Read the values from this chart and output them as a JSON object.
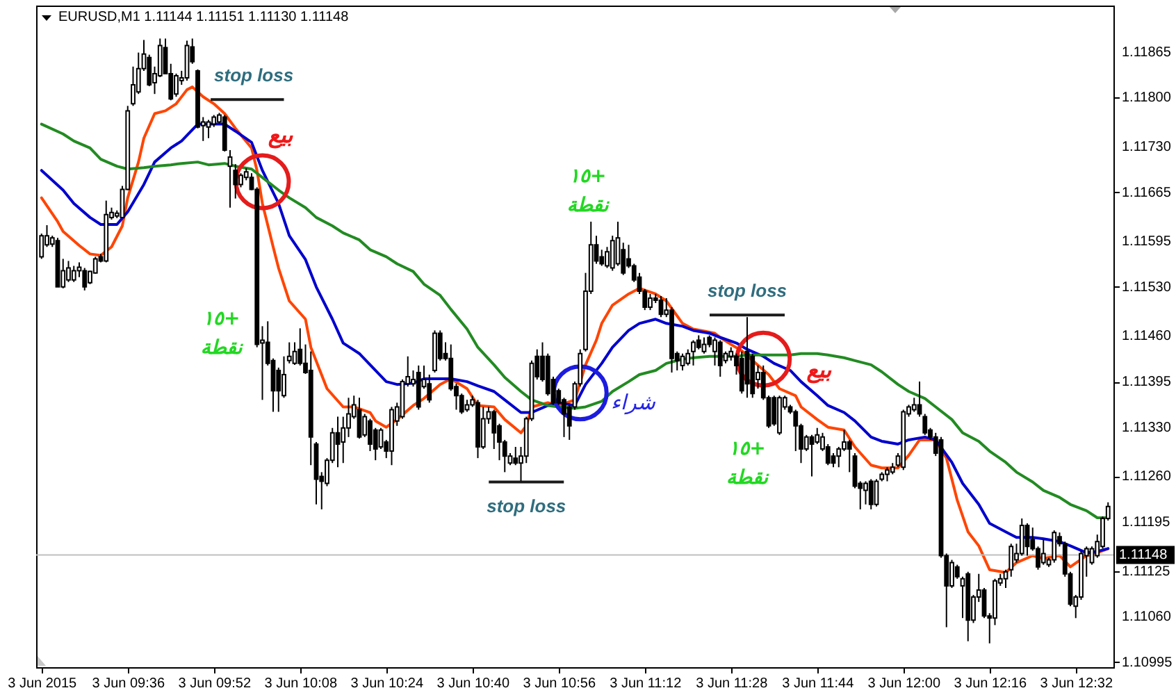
{
  "chart_data": {
    "type": "candlestick",
    "title": "EURUSD,M1 1.11144 1.11151 1.11130 1.11148",
    "color": "#000000",
    "x": [
      "2015-06-03T09:20",
      "2015-06-03T09:21",
      "2015-06-03T09:22",
      "2015-06-03T09:23",
      "2015-06-03T09:24",
      "2015-06-03T09:25",
      "2015-06-03T09:26",
      "2015-06-03T09:27",
      "2015-06-03T09:28",
      "2015-06-03T09:29",
      "2015-06-03T09:30",
      "2015-06-03T09:31",
      "2015-06-03T09:32",
      "2015-06-03T09:33",
      "2015-06-03T09:34",
      "2015-06-03T09:35",
      "2015-06-03T09:36",
      "2015-06-03T09:37",
      "2015-06-03T09:38",
      "2015-06-03T09:39",
      "2015-06-03T09:40",
      "2015-06-03T09:41",
      "2015-06-03T09:42",
      "2015-06-03T09:43",
      "2015-06-03T09:44",
      "2015-06-03T09:45",
      "2015-06-03T09:46",
      "2015-06-03T09:47",
      "2015-06-03T09:48",
      "2015-06-03T09:49",
      "2015-06-03T09:50",
      "2015-06-03T09:51",
      "2015-06-03T09:52",
      "2015-06-03T09:53",
      "2015-06-03T09:54",
      "2015-06-03T09:55",
      "2015-06-03T09:56",
      "2015-06-03T09:57",
      "2015-06-03T09:58",
      "2015-06-03T09:59",
      "2015-06-03T10:00",
      "2015-06-03T10:01",
      "2015-06-03T10:02",
      "2015-06-03T10:03",
      "2015-06-03T10:04",
      "2015-06-03T10:05",
      "2015-06-03T10:06",
      "2015-06-03T10:07",
      "2015-06-03T10:08",
      "2015-06-03T10:09",
      "2015-06-03T10:10",
      "2015-06-03T10:11",
      "2015-06-03T10:12",
      "2015-06-03T10:13",
      "2015-06-03T10:14",
      "2015-06-03T10:15",
      "2015-06-03T10:16",
      "2015-06-03T10:17",
      "2015-06-03T10:18",
      "2015-06-03T10:19",
      "2015-06-03T10:20",
      "2015-06-03T10:21",
      "2015-06-03T10:22",
      "2015-06-03T10:23",
      "2015-06-03T10:24",
      "2015-06-03T10:25",
      "2015-06-03T10:26",
      "2015-06-03T10:27",
      "2015-06-03T10:28",
      "2015-06-03T10:29",
      "2015-06-03T10:30",
      "2015-06-03T10:31",
      "2015-06-03T10:32",
      "2015-06-03T10:33",
      "2015-06-03T10:34",
      "2015-06-03T10:35",
      "2015-06-03T10:36",
      "2015-06-03T10:37",
      "2015-06-03T10:38",
      "2015-06-03T10:39",
      "2015-06-03T10:40",
      "2015-06-03T10:41",
      "2015-06-03T10:42",
      "2015-06-03T10:43",
      "2015-06-03T10:44",
      "2015-06-03T10:45",
      "2015-06-03T10:46",
      "2015-06-03T10:47",
      "2015-06-03T10:48",
      "2015-06-03T10:49",
      "2015-06-03T10:50",
      "2015-06-03T10:51",
      "2015-06-03T10:52",
      "2015-06-03T10:53",
      "2015-06-03T10:54",
      "2015-06-03T10:55",
      "2015-06-03T10:56",
      "2015-06-03T10:57",
      "2015-06-03T10:58",
      "2015-06-03T10:59",
      "2015-06-03T11:00",
      "2015-06-03T11:01",
      "2015-06-03T11:02",
      "2015-06-03T11:03",
      "2015-06-03T11:04",
      "2015-06-03T11:05",
      "2015-06-03T11:06",
      "2015-06-03T11:07",
      "2015-06-03T11:08",
      "2015-06-03T11:09",
      "2015-06-03T11:10",
      "2015-06-03T11:11",
      "2015-06-03T11:12",
      "2015-06-03T11:13",
      "2015-06-03T11:14",
      "2015-06-03T11:15",
      "2015-06-03T11:16",
      "2015-06-03T11:17",
      "2015-06-03T11:18",
      "2015-06-03T11:19",
      "2015-06-03T11:20",
      "2015-06-03T11:21",
      "2015-06-03T11:22",
      "2015-06-03T11:23",
      "2015-06-03T11:24",
      "2015-06-03T11:25",
      "2015-06-03T11:26",
      "2015-06-03T11:27",
      "2015-06-03T11:28",
      "2015-06-03T11:29",
      "2015-06-03T11:30",
      "2015-06-03T11:31",
      "2015-06-03T11:32",
      "2015-06-03T11:33",
      "2015-06-03T11:34",
      "2015-06-03T11:35",
      "2015-06-03T11:36",
      "2015-06-03T11:37",
      "2015-06-03T11:38",
      "2015-06-03T11:39",
      "2015-06-03T11:40",
      "2015-06-03T11:41",
      "2015-06-03T11:42",
      "2015-06-03T11:43",
      "2015-06-03T11:44",
      "2015-06-03T11:45",
      "2015-06-03T11:46",
      "2015-06-03T11:47",
      "2015-06-03T11:48",
      "2015-06-03T11:49",
      "2015-06-03T11:50",
      "2015-06-03T11:51",
      "2015-06-03T11:52",
      "2015-06-03T11:53",
      "2015-06-03T11:54",
      "2015-06-03T11:55",
      "2015-06-03T11:56",
      "2015-06-03T11:57",
      "2015-06-03T11:58",
      "2015-06-03T11:59",
      "2015-06-03T12:00",
      "2015-06-03T12:01",
      "2015-06-03T12:02",
      "2015-06-03T12:03",
      "2015-06-03T12:04",
      "2015-06-03T12:05",
      "2015-06-03T12:06",
      "2015-06-03T12:07",
      "2015-06-03T12:08",
      "2015-06-03T12:09",
      "2015-06-03T12:10",
      "2015-06-03T12:11",
      "2015-06-03T12:12",
      "2015-06-03T12:13",
      "2015-06-03T12:14",
      "2015-06-03T12:15",
      "2015-06-03T12:16",
      "2015-06-03T12:17",
      "2015-06-03T12:18",
      "2015-06-03T12:19",
      "2015-06-03T12:20",
      "2015-06-03T12:21",
      "2015-06-03T12:22",
      "2015-06-03T12:23",
      "2015-06-03T12:24",
      "2015-06-03T12:25",
      "2015-06-03T12:26",
      "2015-06-03T12:27",
      "2015-06-03T12:28",
      "2015-06-03T12:29",
      "2015-06-03T12:30",
      "2015-06-03T12:31",
      "2015-06-03T12:32",
      "2015-06-03T12:33",
      "2015-06-03T12:34",
      "2015-06-03T12:35",
      "2015-06-03T12:36",
      "2015-06-03T12:37",
      "2015-06-03T12:38"
    ],
    "ohlc": [
      [
        1.11573,
        1.11606,
        1.1157,
        1.11603
      ],
      [
        1.1159,
        1.11618,
        1.11587,
        1.11603
      ],
      [
        1.11591,
        1.11603,
        1.11587,
        1.116
      ],
      [
        1.11596,
        1.116,
        1.1153,
        1.1153
      ],
      [
        1.1153,
        1.1157,
        1.11528,
        1.11553
      ],
      [
        1.1154,
        1.11567,
        1.11537,
        1.11557
      ],
      [
        1.1154,
        1.1156,
        1.11537,
        1.11553
      ],
      [
        1.11553,
        1.11565,
        1.11544,
        1.11558
      ],
      [
        1.11553,
        1.11557,
        1.11525,
        1.1153
      ],
      [
        1.11536,
        1.11553,
        1.11534,
        1.11552
      ],
      [
        1.1155,
        1.11573,
        1.11549,
        1.1157
      ],
      [
        1.11573,
        1.11577,
        1.11565,
        1.11567
      ],
      [
        1.11567,
        1.11653,
        1.11565,
        1.11633
      ],
      [
        1.11629,
        1.11643,
        1.11626,
        1.11636
      ],
      [
        1.11631,
        1.11639,
        1.11628,
        1.11635
      ],
      [
        1.11629,
        1.11674,
        1.11628,
        1.11669
      ],
      [
        1.11669,
        1.11788,
        1.11668,
        1.11781
      ],
      [
        1.11791,
        1.11844,
        1.11788,
        1.11818
      ],
      [
        1.11808,
        1.11864,
        1.11805,
        1.11841
      ],
      [
        1.11841,
        1.11882,
        1.11838,
        1.11862
      ],
      [
        1.11857,
        1.11861,
        1.11816,
        1.11818
      ],
      [
        1.11821,
        1.11844,
        1.11805,
        1.11834
      ],
      [
        1.11831,
        1.11884,
        1.11829,
        1.11874
      ],
      [
        1.11871,
        1.11884,
        1.11833,
        1.11834
      ],
      [
        1.11834,
        1.11848,
        1.11796,
        1.11798
      ],
      [
        1.11805,
        1.11834,
        1.11801,
        1.11831
      ],
      [
        1.11824,
        1.11838,
        1.11818,
        1.11828
      ],
      [
        1.11828,
        1.11881,
        1.11824,
        1.11874
      ],
      [
        1.11872,
        1.11884,
        1.11848,
        1.11851
      ],
      [
        1.11838,
        1.1184,
        1.11756,
        1.11758
      ],
      [
        1.1176,
        1.11772,
        1.11738,
        1.11765
      ],
      [
        1.11758,
        1.11768,
        1.11742,
        1.11765
      ],
      [
        1.11762,
        1.11775,
        1.11758,
        1.11772
      ],
      [
        1.11765,
        1.11778,
        1.11763,
        1.11775
      ],
      [
        1.11772,
        1.11775,
        1.11723,
        1.11725
      ],
      [
        1.11702,
        1.11725,
        1.11643,
        1.11715
      ],
      [
        1.11696,
        1.11705,
        1.11656,
        1.11676
      ],
      [
        1.11676,
        1.11692,
        1.11672,
        1.11689
      ],
      [
        1.11686,
        1.11699,
        1.11682,
        1.11694
      ],
      [
        1.11686,
        1.11692,
        1.11668,
        1.11669
      ],
      [
        1.11669,
        1.11672,
        1.11444,
        1.11448
      ],
      [
        1.1145,
        1.11474,
        1.11369,
        1.11454
      ],
      [
        1.11451,
        1.11481,
        1.11418,
        1.11421
      ],
      [
        1.11425,
        1.11428,
        1.11352,
        1.11382
      ],
      [
        1.11411,
        1.11415,
        1.11352,
        1.11382
      ],
      [
        1.11375,
        1.11431,
        1.11372,
        1.11405
      ],
      [
        1.11425,
        1.11451,
        1.11421,
        1.11431
      ],
      [
        1.11421,
        1.11451,
        1.11419,
        1.11438
      ],
      [
        1.11441,
        1.11471,
        1.11418,
        1.11421
      ],
      [
        1.11421,
        1.11448,
        1.11406,
        1.11408
      ],
      [
        1.11411,
        1.11438,
        1.11276,
        1.11316
      ],
      [
        1.11306,
        1.11309,
        1.1122,
        1.11256
      ],
      [
        1.1126,
        1.11266,
        1.11213,
        1.11253
      ],
      [
        1.1125,
        1.11286,
        1.11246,
        1.11283
      ],
      [
        1.11283,
        1.11329,
        1.11279,
        1.11322
      ],
      [
        1.11322,
        1.11345,
        1.11273,
        1.11306
      ],
      [
        1.11309,
        1.11345,
        1.11279,
        1.11329
      ],
      [
        1.11329,
        1.11372,
        1.11316,
        1.11349
      ],
      [
        1.11345,
        1.11375,
        1.11342,
        1.11362
      ],
      [
        1.11355,
        1.11372,
        1.11314,
        1.11316
      ],
      [
        1.11319,
        1.11349,
        1.11316,
        1.11345
      ],
      [
        1.11339,
        1.11342,
        1.11296,
        1.11306
      ],
      [
        1.11326,
        1.11329,
        1.11283,
        1.11299
      ],
      [
        1.11302,
        1.11329,
        1.11299,
        1.11326
      ],
      [
        1.11309,
        1.11312,
        1.11286,
        1.11296
      ],
      [
        1.11296,
        1.11359,
        1.11276,
        1.11355
      ],
      [
        1.11339,
        1.11365,
        1.11332,
        1.11359
      ],
      [
        1.11345,
        1.11398,
        1.11342,
        1.11395
      ],
      [
        1.11392,
        1.11431,
        1.11388,
        1.11402
      ],
      [
        1.11392,
        1.11411,
        1.11388,
        1.11398
      ],
      [
        1.11408,
        1.11418,
        1.11355,
        1.11359
      ],
      [
        1.11388,
        1.11418,
        1.11385,
        1.11398
      ],
      [
        1.11392,
        1.11405,
        1.11365,
        1.11369
      ],
      [
        1.11411,
        1.11468,
        1.11408,
        1.11464
      ],
      [
        1.11464,
        1.11468,
        1.11425,
        1.11428
      ],
      [
        1.11435,
        1.11451,
        1.11425,
        1.11428
      ],
      [
        1.11428,
        1.11448,
        1.11382,
        1.11385
      ],
      [
        1.11388,
        1.11392,
        1.11355,
        1.11375
      ],
      [
        1.11375,
        1.11378,
        1.11349,
        1.11352
      ],
      [
        1.11355,
        1.11369,
        1.11352,
        1.11362
      ],
      [
        1.11362,
        1.11375,
        1.11359,
        1.11369
      ],
      [
        1.11365,
        1.11369,
        1.11286,
        1.11302
      ],
      [
        1.11302,
        1.11359,
        1.11299,
        1.11342
      ],
      [
        1.11342,
        1.11359,
        1.11335,
        1.11352
      ],
      [
        1.11352,
        1.11355,
        1.11299,
        1.11322
      ],
      [
        1.11332,
        1.11335,
        1.11283,
        1.11309
      ],
      [
        1.11309,
        1.11312,
        1.11266,
        1.11289
      ],
      [
        1.11279,
        1.11293,
        1.11276,
        1.11289
      ],
      [
        1.11286,
        1.11302,
        1.11276,
        1.11279
      ],
      [
        1.11279,
        1.11302,
        1.11253,
        1.11289
      ],
      [
        1.11289,
        1.11345,
        1.11279,
        1.11342
      ],
      [
        1.11342,
        1.11425,
        1.11339,
        1.11421
      ],
      [
        1.11431,
        1.11441,
        1.11398,
        1.11402
      ],
      [
        1.11431,
        1.11451,
        1.11395,
        1.11398
      ],
      [
        1.11431,
        1.11435,
        1.11375,
        1.11378
      ],
      [
        1.11398,
        1.11402,
        1.11362,
        1.11365
      ],
      [
        1.11382,
        1.11385,
        1.11362,
        1.11365
      ],
      [
        1.11369,
        1.11372,
        1.11316,
        1.11349
      ],
      [
        1.11359,
        1.11362,
        1.11312,
        1.11332
      ],
      [
        1.11359,
        1.11395,
        1.11355,
        1.11392
      ],
      [
        1.11392,
        1.11441,
        1.11388,
        1.11435
      ],
      [
        1.11441,
        1.1155,
        1.11438,
        1.11524
      ],
      [
        1.11524,
        1.11623,
        1.1152,
        1.1159
      ],
      [
        1.1159,
        1.11603,
        1.11563,
        1.11567
      ],
      [
        1.11573,
        1.11583,
        1.1156,
        1.11563
      ],
      [
        1.1156,
        1.11587,
        1.11557,
        1.1158
      ],
      [
        1.11557,
        1.11603,
        1.11553,
        1.11596
      ],
      [
        1.11563,
        1.11623,
        1.1156,
        1.116
      ],
      [
        1.11583,
        1.11593,
        1.11547,
        1.1155
      ],
      [
        1.1157,
        1.1159,
        1.11557,
        1.1156
      ],
      [
        1.1156,
        1.11563,
        1.11537,
        1.1154
      ],
      [
        1.11544,
        1.1155,
        1.1152,
        1.11524
      ],
      [
        1.11524,
        1.11527,
        1.11497,
        1.11501
      ],
      [
        1.11501,
        1.1152,
        1.11497,
        1.11514
      ],
      [
        1.11514,
        1.1152,
        1.11507,
        1.11511
      ],
      [
        1.11511,
        1.11517,
        1.11487,
        1.11491
      ],
      [
        1.11491,
        1.11514,
        1.11487,
        1.11497
      ],
      [
        1.11497,
        1.11501,
        1.11408,
        1.11428
      ],
      [
        1.11435,
        1.11438,
        1.11411,
        1.11425
      ],
      [
        1.11418,
        1.11435,
        1.11411,
        1.11431
      ],
      [
        1.11421,
        1.11441,
        1.11418,
        1.11435
      ],
      [
        1.11438,
        1.11454,
        1.11418,
        1.11451
      ],
      [
        1.11454,
        1.11461,
        1.11441,
        1.11444
      ],
      [
        1.11438,
        1.11458,
        1.11435,
        1.11448
      ],
      [
        1.11458,
        1.11461,
        1.11444,
        1.11448
      ],
      [
        1.11438,
        1.11458,
        1.11418,
        1.11454
      ],
      [
        1.11451,
        1.11454,
        1.11402,
        1.11418
      ],
      [
        1.11425,
        1.11438,
        1.11421,
        1.11435
      ],
      [
        1.11431,
        1.11444,
        1.11425,
        1.11438
      ],
      [
        1.11431,
        1.11435,
        1.11405,
        1.11418
      ],
      [
        1.11428,
        1.11438,
        1.11378,
        1.11382
      ],
      [
        1.11438,
        1.11487,
        1.11372,
        1.11392
      ],
      [
        1.11431,
        1.11435,
        1.11372,
        1.11378
      ],
      [
        1.11398,
        1.11418,
        1.11385,
        1.11408
      ],
      [
        1.11408,
        1.11418,
        1.11369,
        1.11372
      ],
      [
        1.11372,
        1.11375,
        1.11329,
        1.11332
      ],
      [
        1.11372,
        1.11375,
        1.11332,
        1.11335
      ],
      [
        1.11322,
        1.11375,
        1.11319,
        1.11372
      ],
      [
        1.11359,
        1.11375,
        1.11355,
        1.11372
      ],
      [
        1.11359,
        1.11362,
        1.11349,
        1.11352
      ],
      [
        1.11352,
        1.11355,
        1.11296,
        1.11332
      ],
      [
        1.11332,
        1.11335,
        1.11279,
        1.11299
      ],
      [
        1.11299,
        1.11319,
        1.11296,
        1.11316
      ],
      [
        1.11316,
        1.11319,
        1.1126,
        1.11306
      ],
      [
        1.11309,
        1.11329,
        1.11306,
        1.11319
      ],
      [
        1.11299,
        1.11322,
        1.11296,
        1.11316
      ],
      [
        1.11302,
        1.11306,
        1.11276,
        1.11279
      ],
      [
        1.11289,
        1.11293,
        1.11273,
        1.11279
      ],
      [
        1.11289,
        1.11302,
        1.11273,
        1.11299
      ],
      [
        1.11299,
        1.11326,
        1.11296,
        1.11309
      ],
      [
        1.11309,
        1.11312,
        1.11266,
        1.11299
      ],
      [
        1.11289,
        1.11293,
        1.11243,
        1.11246
      ],
      [
        1.1125,
        1.11253,
        1.11213,
        1.11243
      ],
      [
        1.1124,
        1.11253,
        1.1122,
        1.1125
      ],
      [
        1.11253,
        1.11256,
        1.11213,
        1.1122
      ],
      [
        1.1122,
        1.11256,
        1.11217,
        1.11253
      ],
      [
        1.11256,
        1.11266,
        1.11253,
        1.11263
      ],
      [
        1.11263,
        1.11273,
        1.11253,
        1.11269
      ],
      [
        1.11266,
        1.11279,
        1.11263,
        1.11273
      ],
      [
        1.11276,
        1.11293,
        1.11273,
        1.11289
      ],
      [
        1.11273,
        1.11355,
        1.11269,
        1.11352
      ],
      [
        1.11349,
        1.11362,
        1.11345,
        1.11359
      ],
      [
        1.11355,
        1.11372,
        1.11352,
        1.11362
      ],
      [
        1.11362,
        1.11395,
        1.11345,
        1.11349
      ],
      [
        1.11345,
        1.11349,
        1.11319,
        1.11322
      ],
      [
        1.11326,
        1.11329,
        1.11312,
        1.11316
      ],
      [
        1.11316,
        1.11322,
        1.11289,
        1.11293
      ],
      [
        1.11312,
        1.11316,
        1.11144,
        1.11147
      ],
      [
        1.11147,
        1.1115,
        1.11045,
        1.11104
      ],
      [
        1.11104,
        1.11141,
        1.11101,
        1.11137
      ],
      [
        1.11131,
        1.11134,
        1.11114,
        1.11117
      ],
      [
        1.11104,
        1.11117,
        1.11058,
        1.11114
      ],
      [
        1.11121,
        1.11124,
        1.11025,
        1.11055
      ],
      [
        1.11055,
        1.11091,
        1.11051,
        1.11088
      ],
      [
        1.11088,
        1.11121,
        1.11081,
        1.11098
      ],
      [
        1.11098,
        1.11101,
        1.11058,
        1.11061
      ],
      [
        1.11061,
        1.11065,
        1.11022,
        1.11058
      ],
      [
        1.11058,
        1.11114,
        1.11048,
        1.11111
      ],
      [
        1.11108,
        1.11121,
        1.11104,
        1.11114
      ],
      [
        1.11114,
        1.11127,
        1.11101,
        1.11124
      ],
      [
        1.11127,
        1.11164,
        1.11117,
        1.1116
      ],
      [
        1.11141,
        1.11164,
        1.11137,
        1.1115
      ],
      [
        1.1115,
        1.112,
        1.11147,
        1.1119
      ],
      [
        1.1119,
        1.11193,
        1.11147,
        1.1116
      ],
      [
        1.1117,
        1.11187,
        1.11154,
        1.11157
      ],
      [
        1.11157,
        1.1116,
        1.11127,
        1.11131
      ],
      [
        1.11137,
        1.1117,
        1.11134,
        1.1115
      ],
      [
        1.11134,
        1.11144,
        1.11131,
        1.11141
      ],
      [
        1.11141,
        1.11183,
        1.11137,
        1.1118
      ],
      [
        1.11174,
        1.1118,
        1.1116,
        1.11164
      ],
      [
        1.11164,
        1.11167,
        1.11117,
        1.11121
      ],
      [
        1.11121,
        1.11124,
        1.11075,
        1.11078
      ],
      [
        1.11075,
        1.11091,
        1.11058,
        1.11088
      ],
      [
        1.11088,
        1.11154,
        1.11084,
        1.1115
      ],
      [
        1.11147,
        1.1116,
        1.11117,
        1.11157
      ],
      [
        1.11137,
        1.1116,
        1.11134,
        1.11157
      ],
      [
        1.11147,
        1.11177,
        1.11144,
        1.11167
      ],
      [
        1.1116,
        1.11203,
        1.11157,
        1.112
      ],
      [
        1.112,
        1.11223,
        1.11197,
        1.11217
      ]
    ],
    "series": [
      {
        "type": "line",
        "color": "#ff4500",
        "x": [
          "2015-06-03T09:20",
          "2015-06-03T09:23",
          "2015-06-03T09:24",
          "2015-06-03T09:27",
          "2015-06-03T09:29",
          "2015-06-03T09:31",
          "2015-06-03T09:33",
          "2015-06-03T09:35",
          "2015-06-03T09:36",
          "2015-06-03T09:38",
          "2015-06-03T09:39",
          "2015-06-03T09:41",
          "2015-06-03T09:43",
          "2015-06-03T09:45",
          "2015-06-03T09:47",
          "2015-06-03T09:48",
          "2015-06-03T09:50",
          "2015-06-03T09:52",
          "2015-06-03T09:54",
          "2015-06-03T09:56",
          "2015-06-03T09:59",
          "2015-06-03T10:00",
          "2015-06-03T10:01",
          "2015-06-03T10:03",
          "2015-06-03T10:04",
          "2015-06-03T10:06",
          "2015-06-03T10:09",
          "2015-06-03T10:10",
          "2015-06-03T10:13",
          "2015-06-03T10:16",
          "2015-06-03T10:18",
          "2015-06-03T10:21",
          "2015-06-03T10:22",
          "2015-06-03T10:24",
          "2015-06-03T10:26",
          "2015-06-03T10:29",
          "2015-06-03T10:31",
          "2015-06-03T10:34",
          "2015-06-03T10:36",
          "2015-06-03T10:39",
          "2015-06-03T10:41",
          "2015-06-03T10:44",
          "2015-06-03T10:46",
          "2015-06-03T10:49",
          "2015-06-03T10:50",
          "2015-06-03T10:51",
          "2015-06-03T10:54",
          "2015-06-03T10:56",
          "2015-06-03T10:59",
          "2015-06-03T11:01",
          "2015-06-03T11:03",
          "2015-06-03T11:04",
          "2015-06-03T11:06",
          "2015-06-03T11:09",
          "2015-06-03T11:11",
          "2015-06-03T11:14",
          "2015-06-03T11:16",
          "2015-06-03T11:19",
          "2015-06-03T11:21",
          "2015-06-03T11:25",
          "2015-06-03T11:26",
          "2015-06-03T11:28",
          "2015-06-03T11:30",
          "2015-06-03T11:32",
          "2015-06-03T11:35",
          "2015-06-03T11:37",
          "2015-06-03T11:40",
          "2015-06-03T11:41",
          "2015-06-03T11:44",
          "2015-06-03T11:46",
          "2015-06-03T11:49",
          "2015-06-03T11:51",
          "2015-06-03T11:54",
          "2015-06-03T11:56",
          "2015-06-03T11:59",
          "2015-06-03T12:01",
          "2015-06-03T12:03",
          "2015-06-03T12:06",
          "2015-06-03T12:08",
          "2015-06-03T12:10",
          "2015-06-03T12:12",
          "2015-06-03T12:14",
          "2015-06-03T12:16",
          "2015-06-03T12:19",
          "2015-06-03T12:21",
          "2015-06-03T12:24",
          "2015-06-03T12:26",
          "2015-06-03T12:29",
          "2015-06-03T12:31",
          "2015-06-03T12:34",
          "2015-06-03T12:36",
          "2015-06-03T12:38"
        ],
        "values": [
          1.11657,
          1.11623,
          1.11609,
          1.11589,
          1.11577,
          1.11575,
          1.11587,
          1.11617,
          1.11657,
          1.11708,
          1.11742,
          1.11777,
          1.11781,
          1.11791,
          1.11811,
          1.11815,
          1.11801,
          1.11791,
          1.11777,
          1.11756,
          1.11728,
          1.11696,
          1.11649,
          1.11587,
          1.11557,
          1.1151,
          1.11484,
          1.11444,
          1.11385,
          1.11359,
          1.11359,
          1.11351,
          1.11339,
          1.1133,
          1.11341,
          1.11361,
          1.11371,
          1.11391,
          1.11399,
          1.11385,
          1.11361,
          1.11359,
          1.11341,
          1.11322,
          1.11332,
          1.11359,
          1.11365,
          1.11361,
          1.11369,
          1.11419,
          1.11454,
          1.11478,
          1.11504,
          1.1152,
          1.11528,
          1.1152,
          1.1151,
          1.11478,
          1.1147,
          1.11464,
          1.11458,
          1.11448,
          1.11439,
          1.11425,
          1.11405,
          1.11385,
          1.11375,
          1.11359,
          1.11341,
          1.1133,
          1.11326,
          1.11302,
          1.11276,
          1.11272,
          1.11272,
          1.1129,
          1.11312,
          1.11312,
          1.11286,
          1.11226,
          1.11181,
          1.11161,
          1.11127,
          1.11123,
          1.11137,
          1.11147,
          1.11143,
          1.11147,
          1.11131,
          1.11147,
          1.11151,
          1.11157
        ]
      },
      {
        "type": "line",
        "color": "#0000cd",
        "x": [
          "2015-06-03T09:20",
          "2015-06-03T09:24",
          "2015-06-03T09:26",
          "2015-06-03T09:29",
          "2015-06-03T09:31",
          "2015-06-03T09:34",
          "2015-06-03T09:36",
          "2015-06-03T09:39",
          "2015-06-03T09:41",
          "2015-06-03T09:44",
          "2015-06-03T09:46",
          "2015-06-03T09:49",
          "2015-06-03T09:51",
          "2015-06-03T09:54",
          "2015-06-03T09:56",
          "2015-06-03T09:59",
          "2015-06-03T10:01",
          "2015-06-03T10:04",
          "2015-06-03T10:06",
          "2015-06-03T10:09",
          "2015-06-03T10:11",
          "2015-06-03T10:14",
          "2015-06-03T10:16",
          "2015-06-03T10:19",
          "2015-06-03T10:21",
          "2015-06-03T10:24",
          "2015-06-03T10:26",
          "2015-06-03T10:29",
          "2015-06-03T10:31",
          "2015-06-03T10:34",
          "2015-06-03T10:36",
          "2015-06-03T10:39",
          "2015-06-03T10:41",
          "2015-06-03T10:44",
          "2015-06-03T10:46",
          "2015-06-03T10:49",
          "2015-06-03T10:51",
          "2015-06-03T10:54",
          "2015-06-03T10:56",
          "2015-06-03T10:59",
          "2015-06-03T11:01",
          "2015-06-03T11:04",
          "2015-06-03T11:06",
          "2015-06-03T11:09",
          "2015-06-03T11:11",
          "2015-06-03T11:14",
          "2015-06-03T11:16",
          "2015-06-03T11:19",
          "2015-06-03T11:21",
          "2015-06-03T11:24",
          "2015-06-03T11:26",
          "2015-06-03T11:29",
          "2015-06-03T11:31",
          "2015-06-03T11:34",
          "2015-06-03T11:36",
          "2015-06-03T11:39",
          "2015-06-03T11:41",
          "2015-06-03T11:44",
          "2015-06-03T11:46",
          "2015-06-03T11:49",
          "2015-06-03T11:51",
          "2015-06-03T11:54",
          "2015-06-03T11:56",
          "2015-06-03T11:59",
          "2015-06-03T12:01",
          "2015-06-03T12:04",
          "2015-06-03T12:06",
          "2015-06-03T12:09",
          "2015-06-03T12:11",
          "2015-06-03T12:14",
          "2015-06-03T12:16",
          "2015-06-03T12:19",
          "2015-06-03T12:21",
          "2015-06-03T12:24",
          "2015-06-03T12:26",
          "2015-06-03T12:29",
          "2015-06-03T12:31",
          "2015-06-03T12:34",
          "2015-06-03T12:36",
          "2015-06-03T12:38"
        ],
        "values": [
          1.11696,
          1.11668,
          1.11649,
          1.11629,
          1.11619,
          1.11619,
          1.11637,
          1.11676,
          1.11708,
          1.11728,
          1.11738,
          1.11762,
          1.11762,
          1.11762,
          1.11752,
          1.11736,
          1.11696,
          1.11649,
          1.11603,
          1.11569,
          1.1153,
          1.11484,
          1.1145,
          1.11435,
          1.11419,
          1.11395,
          1.11391,
          1.11393,
          1.11399,
          1.11399,
          1.11399,
          1.11395,
          1.11389,
          1.11381,
          1.11369,
          1.11351,
          1.11351,
          1.11361,
          1.11365,
          1.11361,
          1.11391,
          1.11421,
          1.11444,
          1.11468,
          1.11478,
          1.11484,
          1.11478,
          1.11474,
          1.11468,
          1.11464,
          1.11458,
          1.1145,
          1.11441,
          1.11431,
          1.11421,
          1.11411,
          1.11395,
          1.11375,
          1.11361,
          1.11351,
          1.11339,
          1.11316,
          1.1131,
          1.11306,
          1.11312,
          1.11316,
          1.11312,
          1.1128,
          1.1125,
          1.1122,
          1.11193,
          1.11181,
          1.11173,
          1.11173,
          1.11171,
          1.11167,
          1.11161,
          1.11151,
          1.11153,
          1.11157
        ]
      },
      {
        "type": "line",
        "color": "#228b22",
        "x": [
          "2015-06-03T09:20",
          "2015-06-03T09:24",
          "2015-06-03T09:26",
          "2015-06-03T09:29",
          "2015-06-03T09:31",
          "2015-06-03T09:34",
          "2015-06-03T09:36",
          "2015-06-03T09:39",
          "2015-06-03T09:41",
          "2015-06-03T09:44",
          "2015-06-03T09:46",
          "2015-06-03T09:49",
          "2015-06-03T09:51",
          "2015-06-03T09:54",
          "2015-06-03T09:56",
          "2015-06-03T09:59",
          "2015-06-03T10:01",
          "2015-06-03T10:04",
          "2015-06-03T10:06",
          "2015-06-03T10:09",
          "2015-06-03T10:11",
          "2015-06-03T10:14",
          "2015-06-03T10:16",
          "2015-06-03T10:19",
          "2015-06-03T10:21",
          "2015-06-03T10:24",
          "2015-06-03T10:26",
          "2015-06-03T10:29",
          "2015-06-03T10:31",
          "2015-06-03T10:34",
          "2015-06-03T10:36",
          "2015-06-03T10:39",
          "2015-06-03T10:41",
          "2015-06-03T10:44",
          "2015-06-03T10:46",
          "2015-06-03T10:49",
          "2015-06-03T10:51",
          "2015-06-03T10:54",
          "2015-06-03T10:56",
          "2015-06-03T10:59",
          "2015-06-03T11:01",
          "2015-06-03T11:04",
          "2015-06-03T11:06",
          "2015-06-03T11:09",
          "2015-06-03T11:11",
          "2015-06-03T11:14",
          "2015-06-03T11:16",
          "2015-06-03T11:19",
          "2015-06-03T11:21",
          "2015-06-03T11:24",
          "2015-06-03T11:26",
          "2015-06-03T11:29",
          "2015-06-03T11:31",
          "2015-06-03T11:34",
          "2015-06-03T11:36",
          "2015-06-03T11:39",
          "2015-06-03T11:41",
          "2015-06-03T11:44",
          "2015-06-03T11:46",
          "2015-06-03T11:49",
          "2015-06-03T11:51",
          "2015-06-03T11:54",
          "2015-06-03T11:56",
          "2015-06-03T11:59",
          "2015-06-03T12:01",
          "2015-06-03T12:04",
          "2015-06-03T12:06",
          "2015-06-03T12:09",
          "2015-06-03T12:11",
          "2015-06-03T12:14",
          "2015-06-03T12:16",
          "2015-06-03T12:19",
          "2015-06-03T12:21",
          "2015-06-03T12:24",
          "2015-06-03T12:26",
          "2015-06-03T12:29",
          "2015-06-03T12:31",
          "2015-06-03T12:34",
          "2015-06-03T12:36",
          "2015-06-03T12:38"
        ],
        "values": [
          1.11762,
          1.11748,
          1.11738,
          1.11728,
          1.11712,
          1.11702,
          1.11698,
          1.117,
          1.11702,
          1.11704,
          1.11706,
          1.11708,
          1.11704,
          1.11706,
          1.11702,
          1.11698,
          1.11686,
          1.11668,
          1.11657,
          1.11643,
          1.11629,
          1.11617,
          1.11607,
          1.11597,
          1.11583,
          1.11573,
          1.11563,
          1.11552,
          1.11534,
          1.11518,
          1.11498,
          1.1147,
          1.11444,
          1.11419,
          1.11401,
          1.11381,
          1.11369,
          1.11361,
          1.11359,
          1.11357,
          1.11359,
          1.11367,
          1.11381,
          1.11395,
          1.11405,
          1.11411,
          1.11421,
          1.11427,
          1.11429,
          1.11431,
          1.11431,
          1.11431,
          1.11433,
          1.11433,
          1.11433,
          1.11433,
          1.11435,
          1.11435,
          1.11433,
          1.11429,
          1.11425,
          1.11419,
          1.11409,
          1.11391,
          1.11381,
          1.11371,
          1.11359,
          1.11341,
          1.11322,
          1.1131,
          1.11296,
          1.1128,
          1.11266,
          1.11252,
          1.1124,
          1.1123,
          1.1122,
          1.11211,
          1.11201,
          1.11201
        ]
      }
    ],
    "xlim": [
      "2015-06-03T09:19",
      "2015-06-03T12:39"
    ],
    "ylim": [
      1.10988,
      1.11931
    ],
    "xticks": [
      {
        "value": "2015-06-03T09:20",
        "label": "3 Jun 2015"
      },
      {
        "value": "2015-06-03T09:36",
        "label": "3 Jun 09:36"
      },
      {
        "value": "2015-06-03T09:52",
        "label": "3 Jun 09:52"
      },
      {
        "value": "2015-06-03T10:08",
        "label": "3 Jun 10:08"
      },
      {
        "value": "2015-06-03T10:24",
        "label": "3 Jun 10:24"
      },
      {
        "value": "2015-06-03T10:40",
        "label": "3 Jun 10:40"
      },
      {
        "value": "2015-06-03T10:56",
        "label": "3 Jun 10:56"
      },
      {
        "value": "2015-06-03T11:12",
        "label": "3 Jun 11:12"
      },
      {
        "value": "2015-06-03T11:28",
        "label": "3 Jun 11:28"
      },
      {
        "value": "2015-06-03T11:44",
        "label": "3 Jun 11:44"
      },
      {
        "value": "2015-06-03T12:00",
        "label": "3 Jun 12:00"
      },
      {
        "value": "2015-06-03T12:16",
        "label": "3 Jun 12:16"
      },
      {
        "value": "2015-06-03T12:32",
        "label": "3 Jun 12:32"
      }
    ],
    "yticks": [
      1.11865,
      {
        "value": 1.118,
        "label": "1.11800"
      },
      {
        "value": 1.1173,
        "label": "1.11730"
      },
      1.11665,
      1.11595,
      {
        "value": 1.1153,
        "label": "1.11530"
      },
      {
        "value": 1.1146,
        "label": "1.11460"
      },
      1.11395,
      {
        "value": 1.1133,
        "label": "1.11330"
      },
      {
        "value": 1.1126,
        "label": "1.11260"
      },
      1.11195,
      1.11125,
      {
        "value": 1.1106,
        "label": "1.11060"
      },
      1.10995
    ],
    "ref_lines": [
      {
        "axis": "y",
        "value": 1.11148,
        "label": "1.11148",
        "color": "#c0c0c0"
      }
    ],
    "annotations": [
      "stop loss",
      {
        "text": "بيع",
        "x": "2015-06-03T10:01",
        "y": 1.1168
      },
      "+١٥ نقطة",
      {
        "text": "stop loss",
        "x": "2015-06-03T10:50",
        "y": 1.11252
      },
      "+١٥ نقطة",
      {
        "text": "شراء",
        "x": "2015-06-03T11:00",
        "y": 1.11379
      },
      {
        "text": "stop loss",
        "x": "2015-06-03T11:31",
        "y": 1.1149
      },
      {
        "text": "بيع",
        "x": "2015-06-03T11:34",
        "y": 1.11427
      },
      "+١٥ نقطة"
    ]
  }
}
